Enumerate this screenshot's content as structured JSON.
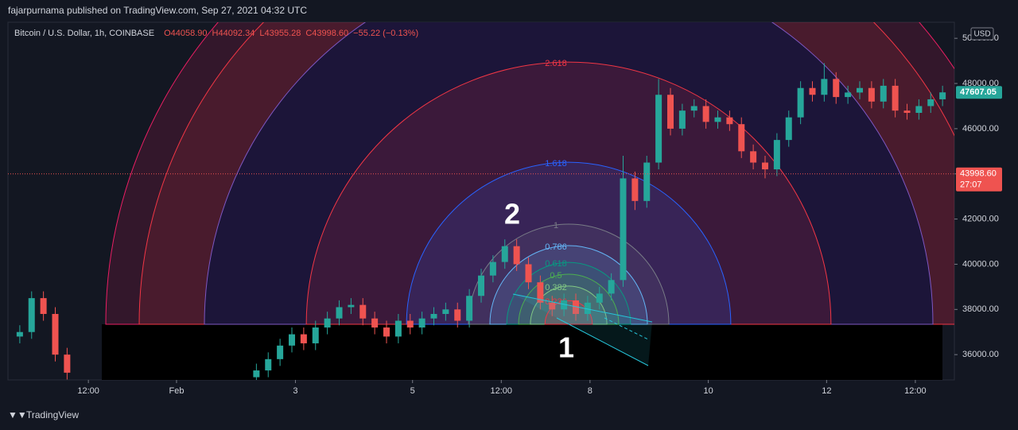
{
  "header": {
    "publisher": "fajarpurnama published on TradingView.com, Sep 27, 2021 04:32 UTC"
  },
  "chart_data": {
    "type": "candlestick",
    "title": "Bitcoin / U.S. Dollar, 1h, COINBASE",
    "ohlc_legend": [
      "O44058.90",
      "H44092.34",
      "L43955.28",
      "C43998.60",
      "−55.22 (−0.13%)"
    ],
    "currency": "USD",
    "up_color": "#26a69a",
    "down_color": "#ef5350",
    "x": [
      1,
      2,
      3,
      4,
      5,
      21,
      22,
      23,
      24,
      25,
      26,
      27,
      28,
      29,
      30,
      31,
      32,
      33,
      34,
      35,
      36,
      37,
      38,
      39,
      40,
      41,
      42,
      43,
      44,
      45,
      46,
      47,
      48,
      49,
      50,
      51,
      52,
      53,
      54,
      55,
      56,
      57,
      58,
      59,
      60,
      61,
      62,
      63,
      64,
      65,
      66,
      67,
      68,
      69,
      70,
      71,
      72,
      73,
      74,
      75,
      76,
      77,
      78,
      79
    ],
    "open": [
      36800,
      37000,
      38500,
      37800,
      36000,
      35000,
      35300,
      35800,
      36400,
      36900,
      36500,
      37200,
      37600,
      38100,
      38200,
      37600,
      37200,
      36800,
      37500,
      37200,
      37600,
      37800,
      38000,
      37500,
      38600,
      39500,
      40100,
      40800,
      40000,
      39200,
      38300,
      38000,
      38400,
      37800,
      38300,
      38700,
      39300,
      43800,
      42800,
      44500,
      47500,
      46000,
      46800,
      47000,
      46300,
      46500,
      46200,
      45000,
      44500,
      44200,
      45500,
      46500,
      47800,
      47500,
      48200,
      47400,
      47600,
      47800,
      47200,
      47900,
      46800,
      46700,
      47000,
      47300
    ],
    "high": [
      37300,
      38800,
      38800,
      38100,
      36300,
      35600,
      36100,
      36700,
      37200,
      37200,
      37500,
      37900,
      38400,
      38500,
      38500,
      37900,
      37500,
      37800,
      37800,
      37900,
      38100,
      38300,
      38300,
      38900,
      39800,
      40400,
      41100,
      41100,
      40300,
      39500,
      38600,
      38700,
      38700,
      38600,
      39000,
      39600,
      44800,
      44100,
      44800,
      48200,
      47800,
      47100,
      47300,
      47300,
      46800,
      46800,
      46500,
      45300,
      44800,
      45800,
      46800,
      48100,
      48100,
      48900,
      48500,
      47900,
      48100,
      48100,
      48200,
      48200,
      47100,
      47300,
      47600,
      47900
    ],
    "low": [
      36500,
      36700,
      37500,
      35700,
      34900,
      34700,
      35000,
      35500,
      36100,
      36200,
      36200,
      36900,
      37300,
      37800,
      37300,
      36900,
      36500,
      36500,
      36900,
      36900,
      37300,
      37500,
      37200,
      37200,
      38300,
      39200,
      39800,
      39700,
      38900,
      38000,
      37700,
      37700,
      37500,
      37500,
      38000,
      38400,
      39000,
      42400,
      42500,
      44200,
      45700,
      45700,
      46500,
      46000,
      46000,
      45900,
      44700,
      44200,
      43800,
      43900,
      45200,
      46200,
      47200,
      47200,
      47100,
      47100,
      47300,
      46900,
      46900,
      46500,
      46400,
      46400,
      46700,
      47000
    ],
    "close": [
      37000,
      38500,
      37800,
      36000,
      35200,
      35300,
      35800,
      36400,
      36900,
      36500,
      37200,
      37600,
      38100,
      38200,
      37600,
      37200,
      36800,
      37500,
      37200,
      37600,
      37800,
      38000,
      37500,
      38600,
      39500,
      40100,
      40800,
      40000,
      39200,
      38300,
      38000,
      38400,
      37800,
      38300,
      38700,
      39300,
      43800,
      42800,
      44500,
      47500,
      46000,
      46800,
      47000,
      46300,
      46500,
      46200,
      45000,
      44500,
      44200,
      45500,
      46500,
      47800,
      47500,
      48200,
      47400,
      47600,
      47800,
      47200,
      47900,
      46800,
      46700,
      47000,
      47300,
      47607.05
    ],
    "xlim": [
      0,
      80
    ],
    "xticks": [
      {
        "value": 6.8,
        "label": "12:00"
      },
      {
        "value": 14.25,
        "label": "Feb"
      },
      {
        "value": 24.3,
        "label": "3"
      },
      {
        "value": 34.2,
        "label": "5"
      },
      {
        "value": 41.7,
        "label": "12:00"
      },
      {
        "value": 49.2,
        "label": "8"
      },
      {
        "value": 59.2,
        "label": "10"
      },
      {
        "value": 69.2,
        "label": "12"
      },
      {
        "value": 76.7,
        "label": "12:00"
      }
    ],
    "ylim": [
      34880,
      50710
    ],
    "yticks": [
      {
        "value": 36000,
        "label": "36000.00"
      },
      {
        "value": 38000,
        "label": "38000.00"
      },
      {
        "value": 40000,
        "label": "40000.00"
      },
      {
        "value": 42000,
        "label": "42000.00"
      },
      {
        "value": 44000,
        "label": "44000.00"
      },
      {
        "value": 46000,
        "label": "46000.00"
      },
      {
        "value": 48000,
        "label": "48000.00"
      },
      {
        "value": 50000,
        "label": "50000.00"
      }
    ],
    "last_price": 47607.05,
    "current_price": {
      "value": 43998.6,
      "label": "43998.60"
    },
    "countdown": "27:07",
    "fib_levels": [
      {
        "value": 2.618,
        "color": "#f23645"
      },
      {
        "value": 1.618,
        "color": "#2962ff"
      },
      {
        "value": 1,
        "color": "#787b86"
      },
      {
        "value": 0.786,
        "color": "#64b5f6"
      },
      {
        "value": 0.618,
        "color": "#089981"
      },
      {
        "value": 0.5,
        "color": "#4caf50"
      },
      {
        "value": 0.382,
        "color": "#81c784"
      },
      {
        "value": 0.236,
        "color": "#f23645"
      }
    ],
    "annotations": [
      "1",
      "2"
    ]
  },
  "footer": {
    "brand": "TradingView"
  }
}
